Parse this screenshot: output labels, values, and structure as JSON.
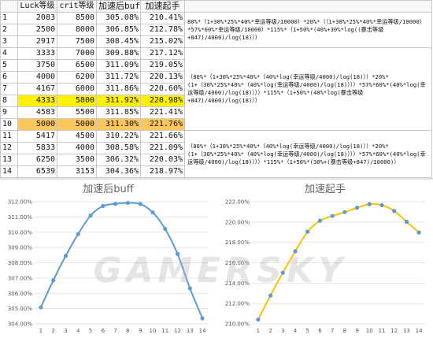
{
  "table": {
    "headers": [
      "",
      "Luck等级",
      "crit等级",
      "加速后buff",
      "加速起手",
      ""
    ],
    "rows": [
      {
        "idx": "1",
        "luck": "2083",
        "crit": "8500",
        "buff": "305.08%",
        "start": "210.41%",
        "hl": ""
      },
      {
        "idx": "2",
        "luck": "2500",
        "crit": "8000",
        "buff": "306.85%",
        "start": "212.78%",
        "hl": ""
      },
      {
        "idx": "3",
        "luck": "2917",
        "crit": "7500",
        "buff": "308.45%",
        "start": "215.02%",
        "hl": ""
      },
      {
        "idx": "4",
        "luck": "3333",
        "crit": "7000",
        "buff": "309.88%",
        "start": "217.12%",
        "hl": ""
      },
      {
        "idx": "5",
        "luck": "3750",
        "crit": "6500",
        "buff": "311.09%",
        "start": "219.05%",
        "hl": ""
      },
      {
        "idx": "6",
        "luck": "4000",
        "crit": "6200",
        "buff": "311.72%",
        "start": "220.13%",
        "hl": ""
      },
      {
        "idx": "7",
        "luck": "4167",
        "crit": "6000",
        "buff": "311.86%",
        "start": "220.60%",
        "hl": ""
      },
      {
        "idx": "8",
        "luck": "4333",
        "crit": "5800",
        "buff": "311.92%",
        "start": "220.98%",
        "hl": "yellow"
      },
      {
        "idx": "9",
        "luck": "4583",
        "crit": "5500",
        "buff": "311.85%",
        "start": "221.41%",
        "hl": ""
      },
      {
        "idx": "10",
        "luck": "5000",
        "crit": "5000",
        "buff": "311.30%",
        "start": "221.76%",
        "hl": "orange"
      },
      {
        "idx": "11",
        "luck": "5417",
        "crit": "4500",
        "buff": "310.22%",
        "start": "221.66%",
        "hl": ""
      },
      {
        "idx": "12",
        "luck": "5833",
        "crit": "4000",
        "buff": "308.58%",
        "start": "221.09%",
        "hl": ""
      },
      {
        "idx": "13",
        "luck": "6250",
        "crit": "3500",
        "buff": "306.32%",
        "start": "220.03%",
        "hl": ""
      },
      {
        "idx": "14",
        "luck": "6539",
        "crit": "3153",
        "buff": "304.36%",
        "start": "218.97%",
        "hl": ""
      }
    ],
    "formulas": [
      "80%*（1+30%*25%*40%*幸运等级/10000）*20%*（（1+30%*25%*40%*幸运等级/10000）*57%*60%*幸运等级/10000）*115%*（1+50%*(40%+30%*log((暴击等级+847)/4000)/log(18)））",
      "（80%*（1+30%*25%*40%*（40%*log(幸运等级/4000)/log(18)））*20%*(1+（30%*25%*40%*（40%*log(幸运等级/4000)/log(18)）））*57%*60%*(40%*log(幸运等级/4000)/log(18)）））*115%*（1+50%*(40%*log(暴击等级+847)/4000)/log(18)））",
      "（80%*（1+30%*25%*40%*（40%*log(幸运等级/4000)/log(18)））*20%*(1+（30%*25%*40%*（40%*log(幸运等级/4000)/log(18)）））*57%*60%*(40%*log(幸运等级/4000)/log(18)）））*115%*（1+50%*(30%+(暴击等级+847)/10000)）"
    ]
  },
  "watermark": "GAMERSKY",
  "chart_data": [
    {
      "type": "line",
      "title": "加速后buff",
      "x": [
        1,
        2,
        3,
        4,
        5,
        6,
        7,
        8,
        9,
        10,
        11,
        12,
        13,
        14
      ],
      "series": [
        {
          "values": [
            305.08,
            306.85,
            308.45,
            309.88,
            311.09,
            311.72,
            311.86,
            311.92,
            311.85,
            311.3,
            310.22,
            308.58,
            306.32,
            304.36
          ],
          "color": "#5b9bd5"
        }
      ],
      "ylim": [
        304.0,
        312.0
      ],
      "yticks": [
        304,
        305,
        306,
        307,
        308,
        309,
        310,
        311,
        312
      ],
      "ytick_labels": [
        "304.00%",
        "305.00%",
        "306.00%",
        "307.00%",
        "308.00%",
        "309.00%",
        "310.00%",
        "311.00%",
        "312.00%"
      ],
      "xtick_labels": [
        "1",
        "2",
        "3",
        "4",
        "5",
        "6",
        "7",
        "8",
        "9",
        "10",
        "11",
        "12",
        "13",
        "14"
      ],
      "grid": true,
      "legend": "none"
    },
    {
      "type": "line",
      "title": "加速起手",
      "x": [
        1,
        2,
        3,
        4,
        5,
        6,
        7,
        8,
        9,
        10,
        11,
        12,
        13,
        14
      ],
      "series": [
        {
          "values": [
            210.41,
            212.78,
            215.02,
            217.12,
            219.05,
            220.13,
            220.6,
            220.98,
            221.41,
            221.76,
            221.66,
            221.09,
            220.03,
            218.97
          ],
          "color": "#ffc000",
          "marker": "#5b9bd5"
        }
      ],
      "ylim": [
        210.0,
        222.0
      ],
      "yticks": [
        210,
        212,
        214,
        216,
        218,
        220,
        222
      ],
      "ytick_labels": [
        "210.00%",
        "212.00%",
        "214.00%",
        "216.00%",
        "218.00%",
        "220.00%",
        "222.00%"
      ],
      "xtick_labels": [
        "1",
        "2",
        "3",
        "4",
        "5",
        "6",
        "7",
        "8",
        "9",
        "10",
        "11",
        "12",
        "13",
        "14"
      ],
      "grid": true,
      "legend": "none"
    }
  ]
}
